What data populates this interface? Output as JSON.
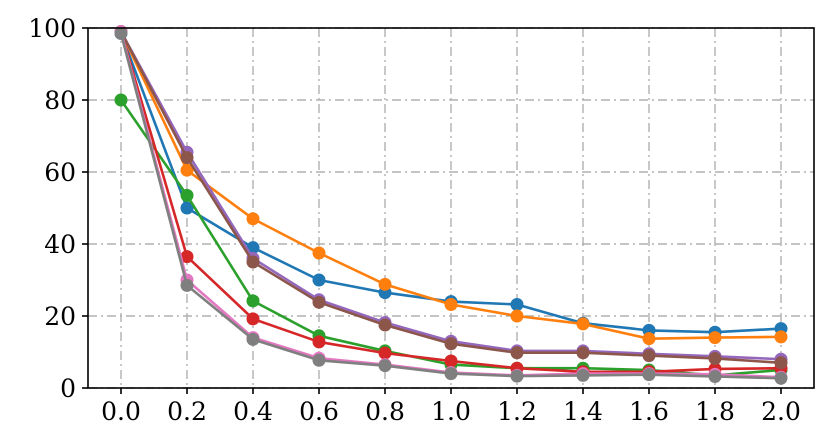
{
  "chart_data": {
    "type": "line",
    "title": "",
    "xlabel": "",
    "ylabel": "",
    "xlim": [
      -0.1,
      2.1
    ],
    "ylim": [
      0,
      100
    ],
    "grid": true,
    "x": [
      0.0,
      0.2,
      0.4,
      0.6,
      0.8,
      1.0,
      1.2,
      1.4,
      1.6,
      1.8,
      2.0
    ],
    "xticks": [
      "0.0",
      "0.2",
      "0.4",
      "0.6",
      "0.8",
      "1.0",
      "1.2",
      "1.4",
      "1.6",
      "1.8",
      "2.0"
    ],
    "yticks": [
      "0",
      "20",
      "40",
      "60",
      "80",
      "100"
    ],
    "series": [
      {
        "color": "#1f77b4",
        "values": [
          98.5,
          50.0,
          39.0,
          30.0,
          26.5,
          24.0,
          23.2,
          18.0,
          16.0,
          15.5,
          16.5
        ]
      },
      {
        "color": "#ff7f0e",
        "values": [
          99.0,
          60.5,
          47.0,
          37.5,
          28.8,
          23.2,
          20.0,
          17.8,
          13.7,
          14.0,
          14.2
        ]
      },
      {
        "color": "#2ca02c",
        "values": [
          80.0,
          53.5,
          24.2,
          14.5,
          10.3,
          6.5,
          5.5,
          5.5,
          5.0,
          3.5,
          5.0
        ]
      },
      {
        "color": "#d62728",
        "values": [
          99.0,
          36.5,
          19.2,
          12.8,
          9.7,
          7.5,
          5.5,
          4.5,
          4.5,
          5.3,
          5.5
        ]
      },
      {
        "color": "#9467bd",
        "values": [
          99.0,
          65.5,
          36.0,
          24.5,
          18.2,
          13.0,
          10.3,
          10.3,
          9.5,
          8.8,
          8.0
        ]
      },
      {
        "color": "#8c564b",
        "values": [
          99.0,
          64.0,
          35.0,
          23.8,
          17.5,
          12.3,
          9.8,
          9.8,
          9.0,
          8.2,
          7.0
        ]
      },
      {
        "color": "#e377c2",
        "values": [
          99.0,
          30.0,
          14.0,
          8.3,
          6.5,
          4.3,
          3.5,
          4.0,
          4.0,
          3.8,
          3.0
        ]
      },
      {
        "color": "#7f7f7f",
        "values": [
          98.5,
          28.5,
          13.5,
          7.7,
          6.2,
          4.0,
          3.3,
          3.5,
          3.7,
          3.2,
          2.7
        ]
      }
    ]
  }
}
